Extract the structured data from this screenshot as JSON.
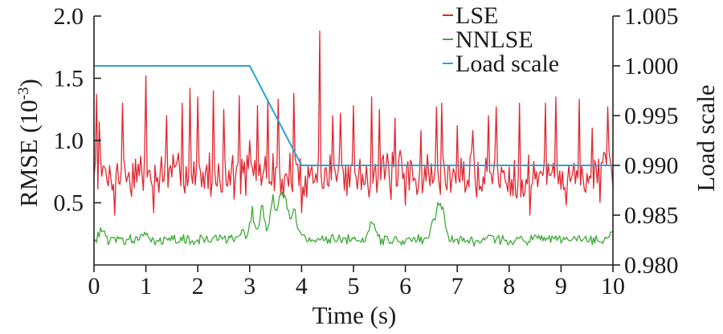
{
  "chart_data": {
    "type": "line",
    "xlabel": "Time (s)",
    "ylabel": "RMSE (10",
    "ylabel_sup": "-3",
    "ylabel_close": ")",
    "y2label": "Load scale",
    "xlim": [
      0,
      10
    ],
    "ylim": [
      0,
      2.0
    ],
    "y2lim": [
      0.98,
      1.005
    ],
    "x_ticks": [
      0,
      1,
      2,
      3,
      4,
      5,
      6,
      7,
      8,
      9,
      10
    ],
    "x_tick_labels": [
      "0",
      "1",
      "2",
      "3",
      "4",
      "5",
      "6",
      "7",
      "8",
      "9",
      "10"
    ],
    "y_ticks": [
      0.5,
      1.0,
      1.5,
      2.0
    ],
    "y_tick_labels": [
      "0.5",
      "1.0",
      "1.5",
      "2.0"
    ],
    "y2_ticks": [
      0.98,
      0.985,
      0.99,
      0.995,
      1.0,
      1.005
    ],
    "y2_tick_labels": [
      "0.980",
      "0.985",
      "0.990",
      "0.995",
      "1.000",
      "1.005"
    ],
    "legend_position": "top-right",
    "grid": false,
    "series": [
      {
        "name": "LSE",
        "axis": "left",
        "color": "#e0262f",
        "style": "noisy",
        "x_range": [
          0,
          10
        ],
        "points": 400,
        "base": 0.72,
        "noise": 0.15,
        "seed": 7,
        "spikes": [
          [
            0.05,
            1.37
          ],
          [
            0.1,
            1.15
          ],
          [
            0.4,
            0.4
          ],
          [
            0.55,
            1.3
          ],
          [
            1.0,
            1.52
          ],
          [
            1.15,
            0.42
          ],
          [
            1.4,
            1.2
          ],
          [
            1.7,
            1.3
          ],
          [
            1.85,
            1.42
          ],
          [
            2.0,
            1.35
          ],
          [
            2.3,
            1.4
          ],
          [
            2.5,
            1.25
          ],
          [
            2.8,
            1.36
          ],
          [
            3.0,
            1.0
          ],
          [
            3.15,
            1.28
          ],
          [
            3.35,
            1.33
          ],
          [
            3.55,
            1.33
          ],
          [
            3.65,
            0.55
          ],
          [
            3.85,
            1.38
          ],
          [
            4.0,
            0.42
          ],
          [
            4.35,
            1.88
          ],
          [
            4.6,
            1.2
          ],
          [
            4.75,
            1.22
          ],
          [
            5.0,
            1.28
          ],
          [
            5.35,
            1.35
          ],
          [
            5.5,
            1.25
          ],
          [
            5.8,
            1.18
          ],
          [
            6.0,
            0.48
          ],
          [
            6.3,
            1.08
          ],
          [
            6.6,
            1.27
          ],
          [
            6.7,
            1.3
          ],
          [
            7.0,
            1.12
          ],
          [
            7.3,
            1.08
          ],
          [
            7.6,
            1.2
          ],
          [
            7.75,
            1.27
          ],
          [
            8.2,
            1.3
          ],
          [
            8.4,
            0.4
          ],
          [
            8.7,
            1.3
          ],
          [
            8.9,
            1.35
          ],
          [
            9.1,
            0.48
          ],
          [
            9.35,
            1.33
          ],
          [
            9.6,
            1.1
          ],
          [
            9.9,
            1.27
          ]
        ]
      },
      {
        "name": "NNLSE",
        "axis": "left",
        "color": "#3daa35",
        "style": "noisy",
        "x_range": [
          0,
          10
        ],
        "points": 400,
        "base": 0.2,
        "noise": 0.035,
        "seed": 13,
        "bumps": [
          [
            0.15,
            0.35
          ],
          [
            1.0,
            0.3
          ],
          [
            2.4,
            0.26
          ],
          [
            2.85,
            0.32
          ],
          [
            3.05,
            0.48
          ],
          [
            3.25,
            0.55
          ],
          [
            3.45,
            0.6
          ],
          [
            3.6,
            0.75
          ],
          [
            3.7,
            0.62
          ],
          [
            3.85,
            0.55
          ],
          [
            4.0,
            0.3
          ],
          [
            4.4,
            0.22
          ],
          [
            5.35,
            0.38
          ],
          [
            5.4,
            0.35
          ],
          [
            6.55,
            0.42
          ],
          [
            6.65,
            0.58
          ],
          [
            6.72,
            0.48
          ],
          [
            7.6,
            0.28
          ],
          [
            8.5,
            0.26
          ],
          [
            10.0,
            0.33
          ]
        ]
      },
      {
        "name": "Load scale",
        "axis": "right",
        "color": "#29a3d6",
        "style": "plain",
        "x": [
          0,
          3,
          4,
          10
        ],
        "y": [
          1.0,
          1.0,
          0.99,
          0.99
        ]
      }
    ]
  }
}
